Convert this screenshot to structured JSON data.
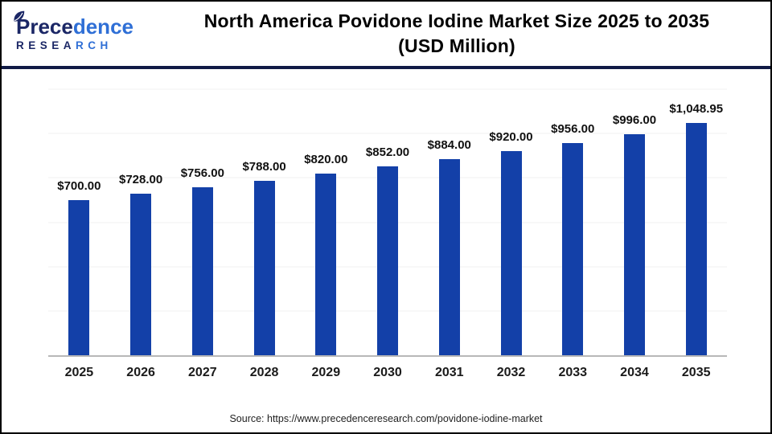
{
  "header": {
    "logo": {
      "brand_dark": "Prece",
      "brand_light": "dence",
      "research_dark": "RESEA",
      "research_light": "RCH"
    },
    "title_line1": "North America Povidone Iodine Market Size 2025 to 2035",
    "title_line2": "(USD Million)"
  },
  "chart_data": {
    "type": "bar",
    "title": "North America Povidone Iodine Market Size 2025 to 2035 (USD Million)",
    "categories": [
      "2025",
      "2026",
      "2027",
      "2028",
      "2029",
      "2030",
      "2031",
      "2032",
      "2033",
      "2034",
      "2035"
    ],
    "values": [
      700,
      728,
      756,
      788,
      820,
      852,
      884,
      920,
      956,
      996,
      1048.95
    ],
    "labels": [
      "$700.00",
      "$728.00",
      "$756.00",
      "$788.00",
      "$820.00",
      "$852.00",
      "$884.00",
      "$920.00",
      "$956.00",
      "$996.00",
      "$1,048.95"
    ],
    "xlabel": "",
    "ylabel": "",
    "ylim": [
      0,
      1200
    ],
    "gridline_step": 200,
    "grid": true,
    "legend": "none",
    "bar_color": "#1340a8"
  },
  "footer": {
    "source": "Source: https://www.precedenceresearch.com/povidone-iodine-market"
  },
  "colors": {
    "bar_blue": "#1340a8",
    "brand_navy": "#1b2766",
    "brand_blue": "#2f6fd6",
    "divider_navy": "#101a45",
    "axis_gray": "#b8b8b8",
    "gridline_gray": "#f0f0f0"
  }
}
